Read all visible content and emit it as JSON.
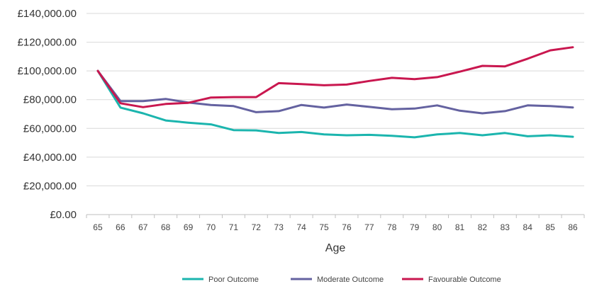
{
  "chart_data": {
    "type": "line",
    "title": "",
    "xlabel": "Age",
    "ylabel": "",
    "categories": [
      "65",
      "66",
      "67",
      "68",
      "69",
      "70",
      "71",
      "72",
      "73",
      "74",
      "75",
      "76",
      "77",
      "78",
      "79",
      "80",
      "81",
      "82",
      "83",
      "84",
      "85",
      "86"
    ],
    "yticks": [
      "£0.00",
      "£20,000.00",
      "£40,000.00",
      "£60,000.00",
      "£80,000.00",
      "£100,000.00",
      "£120,000.00",
      "£140,000.00"
    ],
    "ylim": [
      0,
      140000
    ],
    "grid": true,
    "legend": "bottom",
    "series": [
      {
        "name": "Poor Outcome",
        "color": "#1BB5AE",
        "values": [
          100000,
          74500,
          70500,
          65500,
          64000,
          62800,
          58800,
          58600,
          56800,
          57500,
          55800,
          55200,
          55500,
          54800,
          53800,
          55800,
          56800,
          55200,
          56800,
          54500,
          55200,
          54200
        ]
      },
      {
        "name": "Moderate Outcome",
        "color": "#6462A0",
        "values": [
          100000,
          79000,
          79000,
          80500,
          78000,
          76300,
          75500,
          71300,
          72000,
          76300,
          74500,
          76600,
          75000,
          73300,
          73800,
          76000,
          72300,
          70500,
          72000,
          76000,
          75500,
          74600
        ]
      },
      {
        "name": "Favourable Outcome",
        "color": "#C9174F",
        "values": [
          100000,
          77500,
          74800,
          77000,
          77800,
          81500,
          81800,
          81800,
          91500,
          90800,
          90000,
          90500,
          93000,
          95200,
          94300,
          95700,
          99500,
          103500,
          103200,
          108500,
          114300,
          116500
        ]
      }
    ]
  }
}
